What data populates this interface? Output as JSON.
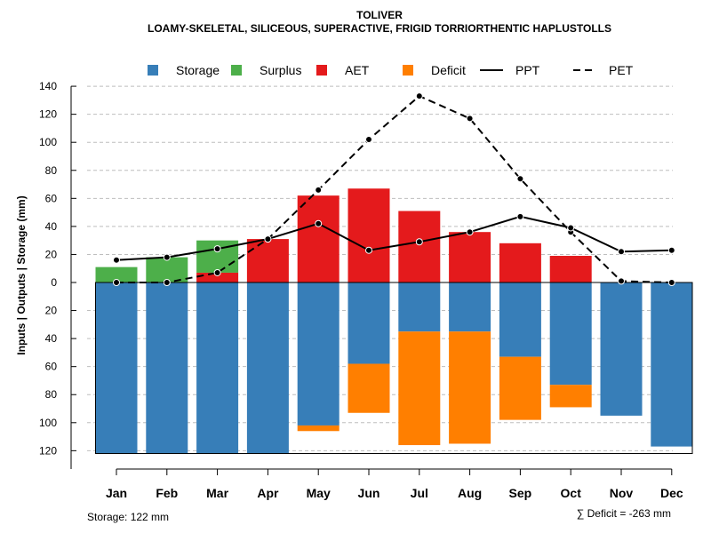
{
  "chart_data": {
    "type": "bar",
    "title": "TOLIVER",
    "subtitle": "LOAMY-SKELETAL, SILICEOUS, SUPERACTIVE, FRIGID TORRIORTHENTIC HAPLUSTOLLS",
    "ylabel": "Inputs | Outputs | Storage    (mm)",
    "categories": [
      "Jan",
      "Feb",
      "Mar",
      "Apr",
      "May",
      "Jun",
      "Jul",
      "Aug",
      "Sep",
      "Oct",
      "Nov",
      "Dec"
    ],
    "ylim": [
      -122,
      140
    ],
    "yticks": [
      140,
      120,
      100,
      80,
      60,
      40,
      20,
      0,
      -20,
      -40,
      -60,
      -80,
      -100,
      -120
    ],
    "ytick_labels": [
      "140",
      "120",
      "100",
      "80",
      "60",
      "40",
      "20",
      "0",
      "20",
      "40",
      "60",
      "80",
      "100",
      "120"
    ],
    "legend": [
      {
        "key": "storage",
        "label": "Storage",
        "kind": "box",
        "color": "#377eb8"
      },
      {
        "key": "surplus",
        "label": "Surplus",
        "kind": "box",
        "color": "#4daf4a"
      },
      {
        "key": "aet",
        "label": "AET",
        "kind": "box",
        "color": "#e41a1c"
      },
      {
        "key": "deficit",
        "label": "Deficit",
        "kind": "box",
        "color": "#ff7f00"
      },
      {
        "key": "ppt",
        "label": "PPT",
        "kind": "solid"
      },
      {
        "key": "pet",
        "label": "PET",
        "kind": "dashed"
      }
    ],
    "series": [
      {
        "name": "Surplus",
        "color": "#4daf4a",
        "values": [
          11,
          18,
          23,
          0,
          0,
          0,
          0,
          0,
          0,
          0,
          0,
          0
        ]
      },
      {
        "name": "AET",
        "color": "#e41a1c",
        "values": [
          0,
          0,
          7,
          31,
          62,
          67,
          51,
          36,
          28,
          19,
          0,
          0
        ]
      },
      {
        "name": "Storage",
        "color": "#377eb8",
        "values": [
          122,
          122,
          122,
          122,
          102,
          58,
          35,
          35,
          53,
          73,
          95,
          117
        ]
      },
      {
        "name": "Deficit",
        "color": "#ff7f00",
        "values": [
          0,
          0,
          0,
          0,
          4,
          35,
          81,
          80,
          45,
          16,
          0,
          0
        ]
      },
      {
        "name": "PPT",
        "values": [
          16,
          18,
          24,
          31,
          42,
          23,
          29,
          36,
          47,
          39,
          22,
          23
        ]
      },
      {
        "name": "PET",
        "values": [
          0,
          0,
          7,
          31,
          66,
          102,
          133,
          117,
          74,
          36,
          1,
          0
        ]
      }
    ],
    "storage_label": "Storage: 122 mm",
    "deficit_label": "∑ Deficit = -263 mm"
  }
}
